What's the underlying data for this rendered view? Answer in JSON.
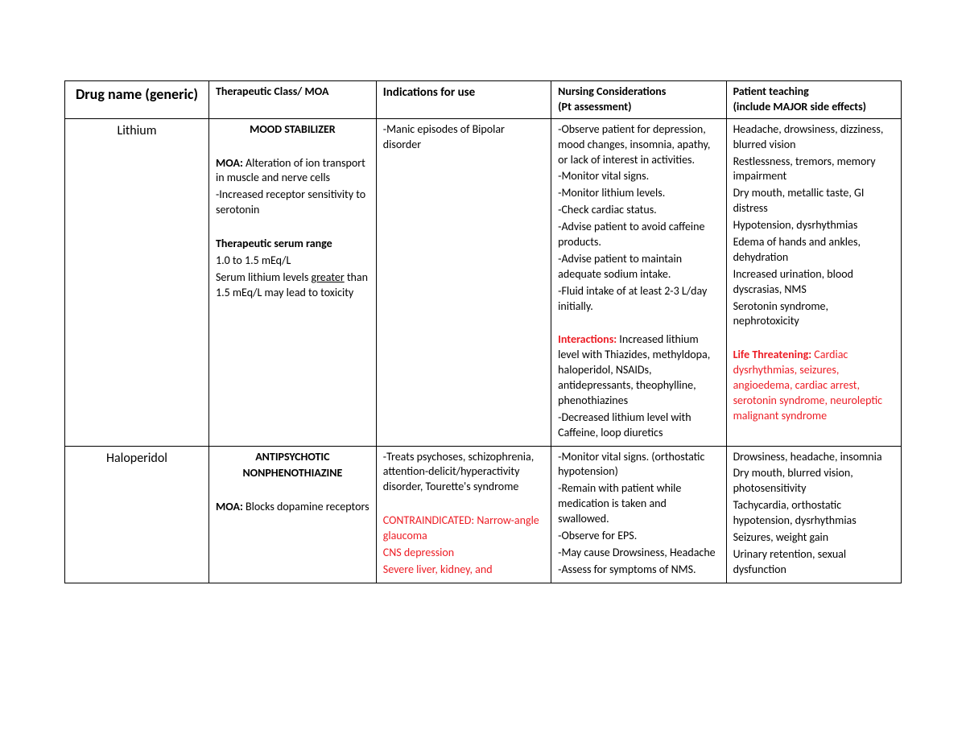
{
  "headers": {
    "c1": "Drug name (generic)",
    "c2": "Therapeutic Class/ MOA",
    "c3": "Indications for use",
    "c4a": "Nursing Considerations",
    "c4b": "(Pt assessment)",
    "c5a": "Patient teaching",
    "c5b": "(include MAJOR side effects)"
  },
  "row1": {
    "name": "Lithium",
    "classLine": "MOOD STABILIZER",
    "moaLabel": "MOA:",
    "moaText": " Alteration of ion transport in muscle and nerve cells",
    "moaLine2": "-Increased receptor sensitivity to serotonin",
    "serumLabel": "Therapeutic serum range",
    "serumLine1": "1.0 to 1.5 mEq/L",
    "serumLine2a": "Serum lithium levels ",
    "serumLine2b": "greater",
    "serumLine2c": " than 1.5 mEq/L may lead to toxicity",
    "ind1": "-Manic episodes of Bipolar disorder",
    "nc1": "-Observe patient for depression, mood changes, insomnia, apathy, or lack of interest in activities.",
    "nc2": "-Monitor vital signs.",
    "nc3": "-Monitor lithium levels.",
    "nc4": "-Check cardiac status.",
    "nc5": "-Advise patient to avoid caffeine products.",
    "nc6": "-Advise patient to maintain adequate sodium intake.",
    "nc7": "-Fluid intake of at least 2-3 L/day initially.",
    "ncInterLabel": "Interactions:",
    "ncInterText": " Increased lithium level with Thiazides, methyldopa, haloperidol, NSAIDs, antidepressants, theophylline, phenothiazines",
    "nc8": "-Decreased lithium level with Caffeine, loop diuretics",
    "pt1": "Headache, drowsiness, dizziness, blurred vision",
    "pt2": "Restlessness, tremors, memory impairment",
    "pt3": "Dry mouth, metallic taste, GI distress",
    "pt4": "Hypotension, dysrhythmias",
    "pt5": "Edema of hands and ankles, dehydration",
    "pt6": "Increased urination, blood dyscrasias, NMS",
    "pt7": "Serotonin syndrome, nephrotoxicity",
    "ptLTlabel": "Life Threatening:",
    "ptLTtext": " Cardiac dysrhythmias, seizures, angioedema, cardiac arrest, serotonin syndrome, neuroleptic malignant syndrome"
  },
  "row2": {
    "name": "Haloperidol",
    "classLine1": "ANTIPSYCHOTIC",
    "classLine2": "NONPHENOTHIAZINE",
    "moaLabel": "MOA:",
    "moaText": " Blocks dopamine receptors",
    "ind1": "-Treats psychoses, schizophrenia, attention-delicit/hyperactivity disorder, Tourette's syndrome",
    "contraLabel": "CONTRAINDICATED:",
    "contra1": " Narrow-angle glaucoma",
    "contra2": "CNS depression",
    "contra3": "Severe liver, kidney, and",
    "nc1": "-Monitor vital signs. (orthostatic hypotension)",
    "nc2": "-Remain with patient while medication is taken and swallowed.",
    "nc3": "-Observe for EPS.",
    "nc4": "-May cause Drowsiness, Headache",
    "nc5": "-Assess for symptoms of NMS.",
    "pt1": "Drowsiness, headache, insomnia",
    "pt2": "Dry mouth, blurred vision, photosensitivity",
    "pt3": "Tachycardia, orthostatic hypotension, dysrhythmias",
    "pt4": "Seizures, weight gain",
    "pt5": "Urinary retention, sexual dysfunction"
  }
}
